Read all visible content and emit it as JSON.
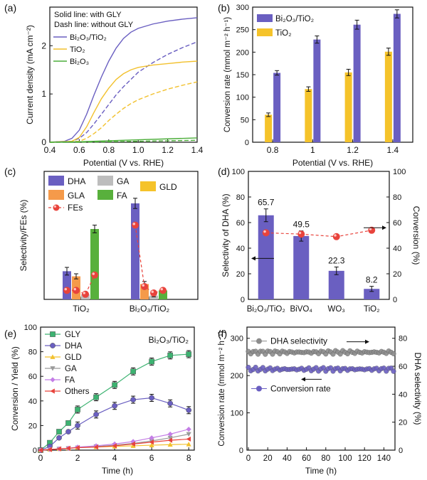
{
  "chart_data": [
    {
      "panel": "(a)",
      "type": "line",
      "xlabel": "Potential (V vs. RHE)",
      "ylabel": "Current density (mA cm⁻²)",
      "xlim": [
        0.4,
        1.4
      ],
      "ylim": [
        0,
        2.8
      ],
      "xticks": [
        "0.4",
        "0.6",
        "0.8",
        "1.0",
        "1.2",
        "1.4"
      ],
      "yticks": [
        "0",
        "1",
        "2"
      ],
      "notes": [
        "Solid line: with GLY",
        "Dash line: without GLY"
      ],
      "legend": [
        "Bi₂O₃/TiO₂",
        "TiO₂",
        "Bi₂O₃"
      ],
      "series": [
        {
          "name": "Bi₂O₃/TiO₂",
          "style": "solid",
          "color": "#6a5fc1",
          "x": [
            0.4,
            0.5,
            0.55,
            0.6,
            0.65,
            0.7,
            0.75,
            0.8,
            0.85,
            0.9,
            0.95,
            1.0,
            1.1,
            1.2,
            1.3,
            1.4
          ],
          "y": [
            0.0,
            0.02,
            0.08,
            0.25,
            0.58,
            0.98,
            1.35,
            1.68,
            1.95,
            2.15,
            2.28,
            2.36,
            2.45,
            2.51,
            2.55,
            2.58
          ]
        },
        {
          "name": "Bi₂O₃/TiO₂",
          "style": "dash",
          "color": "#6a5fc1",
          "x": [
            0.4,
            0.55,
            0.6,
            0.65,
            0.7,
            0.75,
            0.8,
            0.85,
            0.9,
            0.95,
            1.0,
            1.1,
            1.2,
            1.3,
            1.4
          ],
          "y": [
            0.0,
            0.02,
            0.08,
            0.2,
            0.38,
            0.58,
            0.78,
            0.98,
            1.15,
            1.3,
            1.45,
            1.65,
            1.82,
            1.96,
            2.08
          ]
        },
        {
          "name": "TiO₂",
          "style": "solid",
          "color": "#f2c12e",
          "x": [
            0.4,
            0.55,
            0.6,
            0.65,
            0.7,
            0.75,
            0.8,
            0.85,
            0.9,
            0.95,
            1.0,
            1.1,
            1.2,
            1.3,
            1.4
          ],
          "y": [
            0.0,
            0.02,
            0.1,
            0.32,
            0.62,
            0.9,
            1.12,
            1.3,
            1.42,
            1.5,
            1.55,
            1.6,
            1.63,
            1.66,
            1.68
          ]
        },
        {
          "name": "TiO₂",
          "style": "dash",
          "color": "#f2c12e",
          "x": [
            0.4,
            0.6,
            0.65,
            0.7,
            0.75,
            0.8,
            0.85,
            0.9,
            0.95,
            1.0,
            1.1,
            1.2,
            1.3,
            1.4
          ],
          "y": [
            0.0,
            0.02,
            0.08,
            0.18,
            0.3,
            0.45,
            0.58,
            0.7,
            0.8,
            0.88,
            1.0,
            1.1,
            1.18,
            1.25
          ]
        },
        {
          "name": "Bi₂O₃",
          "style": "solid",
          "color": "#4cae3a",
          "x": [
            0.4,
            0.6,
            0.8,
            1.0,
            1.2,
            1.4
          ],
          "y": [
            0.0,
            0.01,
            0.03,
            0.05,
            0.07,
            0.09
          ]
        },
        {
          "name": "Bi₂O₃",
          "style": "dash",
          "color": "#4cae3a",
          "x": [
            0.4,
            0.6,
            0.8,
            1.0,
            1.2,
            1.4
          ],
          "y": [
            0.0,
            0.0,
            0.01,
            0.02,
            0.03,
            0.04
          ]
        }
      ]
    },
    {
      "panel": "(b)",
      "type": "bar",
      "xlabel": "Potential (V vs. RHE)",
      "ylabel": "Conversion rate (mmol m⁻² h⁻¹)",
      "categories": [
        "0.8",
        "1",
        "1.2",
        "1.4"
      ],
      "ylim": [
        0,
        300
      ],
      "yticks": [
        "0",
        "50",
        "100",
        "150",
        "200",
        "250",
        "300"
      ],
      "series": [
        {
          "name": "TiO₂",
          "color": "#f5c32a",
          "values": [
            61,
            118,
            155,
            201
          ],
          "errors": [
            4,
            5,
            7,
            8
          ]
        },
        {
          "name": "Bi₂O₃/TiO₂",
          "color": "#6a5fc1",
          "values": [
            154,
            228,
            261,
            285
          ],
          "errors": [
            5,
            8,
            10,
            9
          ]
        }
      ],
      "legend": [
        "Bi₂O₃/TiO₂",
        "TiO₂"
      ]
    },
    {
      "panel": "(c)",
      "type": "bar",
      "ylabel": "Selectivity/FEs (%)",
      "categories": [
        "TiO₂",
        "Bi₂O₃/TiO₂"
      ],
      "ylim": [
        0,
        100
      ],
      "legend": [
        "DHA",
        "GA",
        "GLD",
        "GLA",
        "FA",
        "FEs"
      ],
      "series": [
        {
          "name": "DHA",
          "color": "#6a5fc1",
          "values": [
            22,
            75
          ],
          "errors": [
            3,
            4
          ]
        },
        {
          "name": "GLA",
          "color": "#f59a4a",
          "values": [
            18,
            12
          ],
          "errors": [
            2,
            2
          ]
        },
        {
          "name": "GA",
          "color": "#bdbdbd",
          "values": [
            4,
            3
          ],
          "errors": [
            1,
            1
          ]
        },
        {
          "name": "FA",
          "color": "#58b03c",
          "values": [
            55,
            7
          ],
          "errors": [
            3,
            1
          ]
        }
      ],
      "fes": {
        "name": "FEs",
        "color": "#e8433c",
        "points": [
          {
            "group": 0,
            "bar": 0,
            "value": 7
          },
          {
            "group": 0,
            "bar": 1,
            "value": 7
          },
          {
            "group": 0,
            "bar": 2,
            "value": 4
          },
          {
            "group": 0,
            "bar": 3,
            "value": 19
          },
          {
            "group": 1,
            "bar": 0,
            "value": 58
          },
          {
            "group": 1,
            "bar": 1,
            "value": 10
          },
          {
            "group": 1,
            "bar": 2,
            "value": 5
          },
          {
            "group": 1,
            "bar": 3,
            "value": 7
          }
        ]
      }
    },
    {
      "panel": "(d)",
      "type": "bar",
      "ylabel": "Selectivity of DHA (%)",
      "y2label": "Conversion (%)",
      "categories": [
        "Bi₂O₃/TiO₂",
        "BiVO₄",
        "WO₃",
        "TiO₂"
      ],
      "ylim": [
        0,
        100
      ],
      "y2lim": [
        0,
        100
      ],
      "yticks": [
        "0",
        "20",
        "40",
        "60",
        "80",
        "100"
      ],
      "bars": {
        "name": "Selectivity of DHA",
        "color": "#6a5fc1",
        "values": [
          65.7,
          49.5,
          22.3,
          8.2
        ],
        "labels": [
          "65.7",
          "49.5",
          "22.3",
          "8.2"
        ],
        "errors": [
          5,
          4,
          3,
          2
        ]
      },
      "line": {
        "name": "Conversion",
        "color": "#e8433c",
        "values": [
          52,
          51,
          49,
          54
        ]
      }
    },
    {
      "panel": "(e)",
      "type": "line",
      "title": "Bi₂O₃/TiO₂",
      "xlabel": "Time (h)",
      "ylabel": "Conversion / Yield (%)",
      "xlim": [
        0,
        8.3
      ],
      "ylim": [
        0,
        100
      ],
      "xticks": [
        "0",
        "2",
        "4",
        "6",
        "8"
      ],
      "yticks": [
        "0",
        "20",
        "40",
        "60",
        "80",
        "100"
      ],
      "x": [
        0,
        0.5,
        1,
        1.5,
        2,
        3,
        4,
        5,
        6,
        7,
        8
      ],
      "series": [
        {
          "name": "GLY",
          "color": "#3cb371",
          "marker": "square",
          "values": [
            0,
            6,
            15,
            22,
            33,
            43,
            53,
            64,
            72,
            77,
            78
          ]
        },
        {
          "name": "DHA",
          "color": "#6a5fc1",
          "marker": "circle",
          "values": [
            0,
            3,
            10,
            15,
            20,
            29,
            36,
            41,
            42.5,
            38,
            32.5
          ]
        },
        {
          "name": "GLD",
          "color": "#f2c12e",
          "marker": "triangle-up",
          "values": [
            0,
            0.5,
            1,
            1.5,
            2,
            2.5,
            3,
            3.5,
            4,
            4.5,
            4.8
          ]
        },
        {
          "name": "GA",
          "color": "#9a9a9a",
          "marker": "triangle-down",
          "values": [
            0,
            0.5,
            1,
            1.5,
            2,
            3,
            4,
            5.5,
            7.5,
            10,
            13
          ]
        },
        {
          "name": "FA",
          "color": "#c47ee6",
          "marker": "diamond",
          "values": [
            0,
            0.5,
            1,
            1.5,
            2.5,
            3.5,
            5,
            7,
            10,
            13,
            17
          ]
        },
        {
          "name": "Others",
          "color": "#e8433c",
          "marker": "triangle-left",
          "values": [
            0,
            0.5,
            1,
            1.5,
            2,
            2.5,
            3.5,
            5,
            6.5,
            8,
            9
          ]
        }
      ]
    },
    {
      "panel": "(f)",
      "type": "scatter",
      "xlabel": "Time (h)",
      "ylabel": "Conversion rate (mmol m⁻² h⁻¹)",
      "y2label": "DHA selectivity (%)",
      "xlim": [
        0,
        150
      ],
      "ylim": [
        0,
        330
      ],
      "y2lim": [
        0,
        88
      ],
      "xticks": [
        "0",
        "20",
        "40",
        "60",
        "80",
        "100",
        "120",
        "140"
      ],
      "yticks": [
        "0",
        "100",
        "200",
        "300"
      ],
      "y2ticks": [
        "0",
        "20",
        "40",
        "60",
        "80"
      ],
      "series": [
        {
          "name": "DHA selectivity",
          "color": "#8c8c8c",
          "axis": "right",
          "mean": 70
        },
        {
          "name": "Conversion rate",
          "color": "#6a5fc1",
          "axis": "left",
          "mean": 217
        }
      ]
    }
  ]
}
